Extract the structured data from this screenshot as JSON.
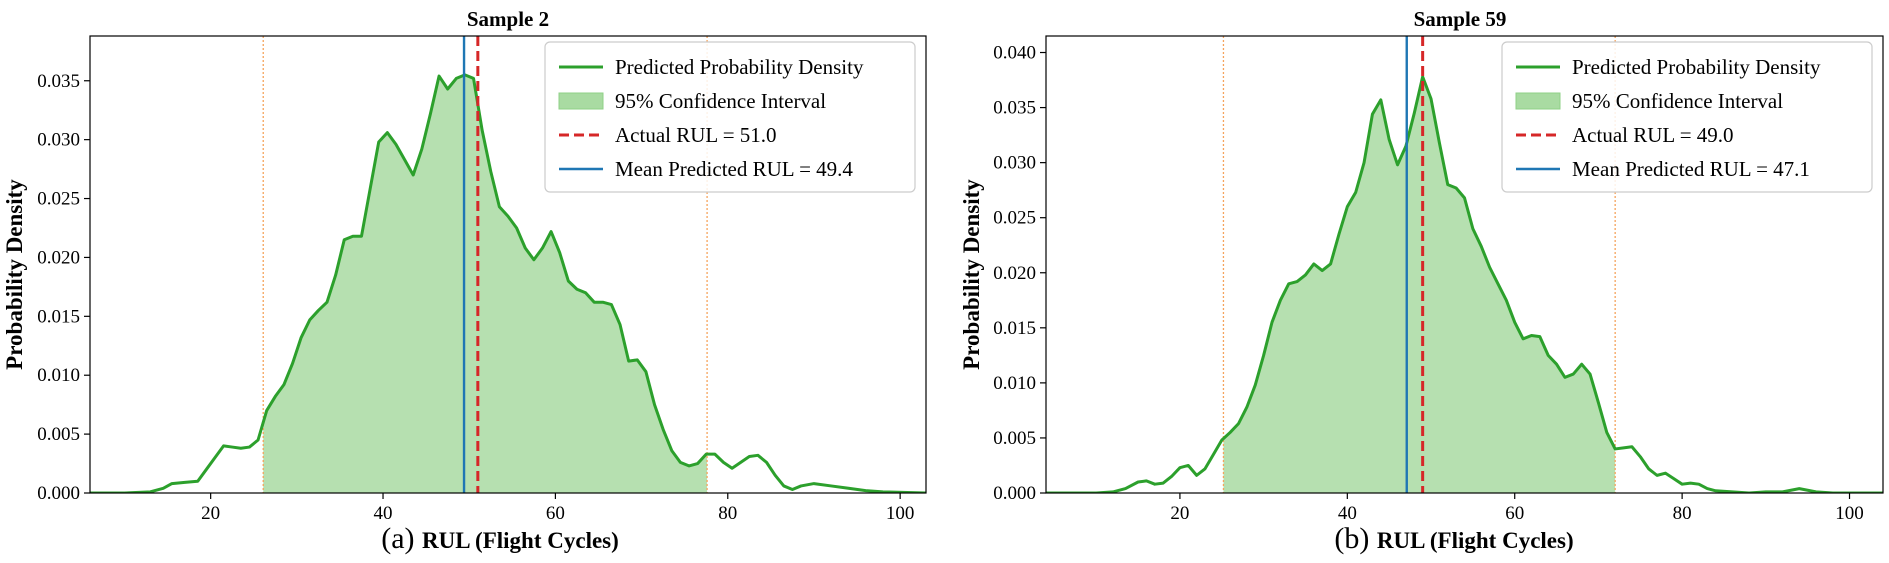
{
  "figure": {
    "caption_prefixes": [
      "(a)",
      "(b)"
    ]
  },
  "colors": {
    "density_line": "#2ca02c",
    "ci_fill": "#a9dba2",
    "actual_line": "#d62728",
    "mean_line": "#1f77b4",
    "ci_bounds": "#f5a35c"
  },
  "chart_data": [
    {
      "type": "area",
      "title": "Sample 2",
      "xlabel": "RUL (Flight Cycles)",
      "ylabel": "Probability Density",
      "xlim": [
        6,
        103
      ],
      "ylim": [
        0,
        0.0388
      ],
      "xticks": [
        20,
        40,
        60,
        80,
        100
      ],
      "yticks": [
        0,
        0.005,
        0.01,
        0.015,
        0.02,
        0.025,
        0.03,
        0.035
      ],
      "ytick_labels": [
        "0.000",
        "0.005",
        "0.010",
        "0.015",
        "0.020",
        "0.025",
        "0.030",
        "0.035"
      ],
      "legend": {
        "position": "top-right",
        "entries": [
          "Predicted Probability Density",
          "95% Confidence Interval",
          "Actual RUL = 51.0",
          "Mean Predicted RUL = 49.4"
        ]
      },
      "actual_rul": 51.0,
      "mean_rul": 49.4,
      "ci": [
        26.1,
        77.6
      ],
      "x": [
        6,
        10,
        13,
        14.5,
        15.5,
        17,
        18.5,
        19.5,
        20.5,
        21.5,
        22.5,
        23.5,
        24.5,
        25.5,
        26.5,
        27.5,
        28.5,
        29.5,
        30.5,
        31.5,
        32.5,
        33.5,
        34.5,
        35.5,
        36.5,
        37.5,
        38.5,
        39.5,
        40.5,
        41.5,
        42.5,
        43.5,
        44.5,
        45.5,
        46.5,
        47.5,
        48.5,
        49.5,
        50.5,
        51.5,
        52.5,
        53.5,
        54.5,
        55.5,
        56.5,
        57.5,
        58.5,
        59.5,
        60.5,
        61.5,
        62.5,
        63.5,
        64.5,
        65.5,
        66.5,
        67.5,
        68.5,
        69.5,
        70.5,
        71.5,
        72.5,
        73.5,
        74.5,
        75.5,
        76.5,
        77.5,
        78.5,
        79.5,
        80.5,
        81.5,
        82.5,
        83.5,
        84.5,
        85.5,
        86.5,
        87.5,
        88.5,
        90,
        92,
        94,
        96,
        98,
        103
      ],
      "y": [
        0,
        0,
        0.0001,
        0.0004,
        0.0008,
        0.0009,
        0.001,
        0.002,
        0.003,
        0.004,
        0.0039,
        0.0038,
        0.0039,
        0.0045,
        0.007,
        0.0082,
        0.0092,
        0.011,
        0.0132,
        0.0147,
        0.0155,
        0.0162,
        0.0185,
        0.0215,
        0.0218,
        0.0218,
        0.0258,
        0.0298,
        0.0306,
        0.0296,
        0.0283,
        0.027,
        0.0292,
        0.0322,
        0.0354,
        0.0343,
        0.0352,
        0.0355,
        0.0352,
        0.0308,
        0.0273,
        0.0243,
        0.0235,
        0.0225,
        0.0208,
        0.0198,
        0.0208,
        0.0222,
        0.0204,
        0.018,
        0.0173,
        0.017,
        0.0162,
        0.0162,
        0.016,
        0.0143,
        0.0112,
        0.0113,
        0.0103,
        0.0075,
        0.0054,
        0.0036,
        0.0026,
        0.0023,
        0.0025,
        0.0033,
        0.0033,
        0.0026,
        0.0021,
        0.0026,
        0.0031,
        0.0032,
        0.0026,
        0.0015,
        0.0006,
        0.0003,
        0.0006,
        0.0008,
        0.0006,
        0.0004,
        0.0002,
        0.0001,
        0
      ]
    },
    {
      "type": "area",
      "title": "Sample 59",
      "xlabel": "RUL (Flight Cycles)",
      "ylabel": "Probability Density",
      "xlim": [
        4,
        104
      ],
      "ylim": [
        0,
        0.0415
      ],
      "xticks": [
        20,
        40,
        60,
        80,
        100
      ],
      "yticks": [
        0,
        0.005,
        0.01,
        0.015,
        0.02,
        0.025,
        0.03,
        0.035,
        0.04
      ],
      "ytick_labels": [
        "0.000",
        "0.005",
        "0.010",
        "0.015",
        "0.020",
        "0.025",
        "0.030",
        "0.035",
        "0.040"
      ],
      "legend": {
        "position": "top-right",
        "entries": [
          "Predicted Probability Density",
          "95% Confidence Interval",
          "Actual RUL = 49.0",
          "Mean Predicted RUL = 47.1"
        ]
      },
      "actual_rul": 49.0,
      "mean_rul": 47.1,
      "ci": [
        25.2,
        72.0
      ],
      "x": [
        4,
        10,
        12,
        13.5,
        15,
        16,
        17,
        18,
        19,
        20,
        21,
        22,
        23,
        24,
        25,
        26,
        27,
        28,
        29,
        30,
        31,
        32,
        33,
        34,
        35,
        36,
        37,
        38,
        39,
        40,
        41,
        42,
        43,
        44,
        45,
        46,
        47,
        48,
        49,
        50,
        51,
        52,
        53,
        54,
        55,
        56,
        57,
        58,
        59,
        60,
        61,
        62,
        63,
        64,
        65,
        66,
        67,
        68,
        69,
        70,
        71,
        72,
        73,
        74,
        75,
        76,
        77,
        78,
        79,
        80,
        81,
        82,
        83,
        84,
        86,
        88,
        90,
        92,
        94,
        96,
        98,
        104
      ],
      "y": [
        0,
        0,
        0.0001,
        0.0004,
        0.001,
        0.0011,
        0.0008,
        0.0009,
        0.0015,
        0.0023,
        0.0025,
        0.0016,
        0.0022,
        0.0035,
        0.0048,
        0.0055,
        0.0063,
        0.0078,
        0.0098,
        0.0125,
        0.0155,
        0.0175,
        0.019,
        0.0192,
        0.0198,
        0.0208,
        0.0202,
        0.0208,
        0.0235,
        0.026,
        0.0273,
        0.03,
        0.0344,
        0.0357,
        0.0321,
        0.0298,
        0.0315,
        0.0345,
        0.0378,
        0.0358,
        0.0318,
        0.028,
        0.0277,
        0.0268,
        0.024,
        0.0224,
        0.0205,
        0.019,
        0.0175,
        0.0155,
        0.014,
        0.0143,
        0.0142,
        0.0125,
        0.0117,
        0.0105,
        0.0108,
        0.0117,
        0.0108,
        0.0082,
        0.0055,
        0.004,
        0.0041,
        0.0042,
        0.0033,
        0.0022,
        0.0016,
        0.0018,
        0.0013,
        0.0008,
        0.0009,
        0.0008,
        0.0004,
        0.0002,
        0.0001,
        0,
        0.0001,
        0.0001,
        0.0004,
        0.0001,
        0,
        0
      ]
    }
  ]
}
